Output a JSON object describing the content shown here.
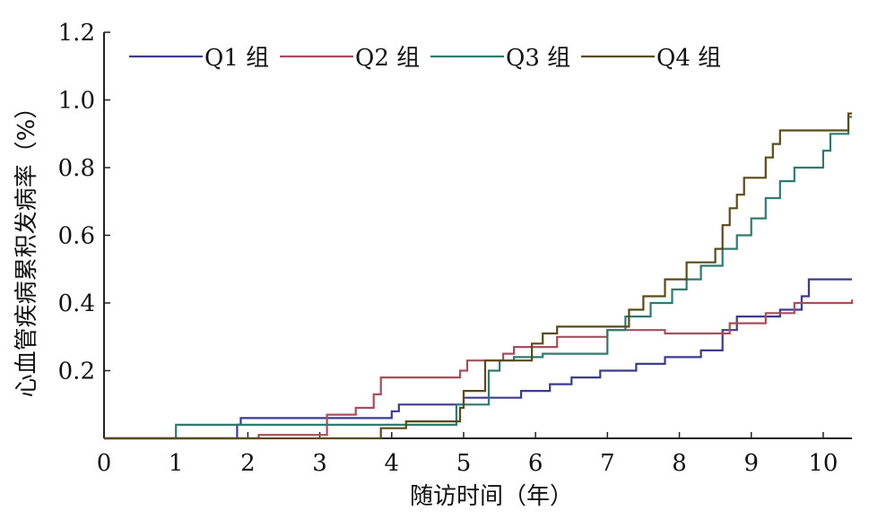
{
  "chart_data": {
    "type": "line",
    "step": true,
    "xlabel": "随访时间（年）",
    "ylabel": "心血管疾病累积发病率（%）",
    "xlim": [
      0,
      10.4
    ],
    "ylim": [
      0,
      1.2
    ],
    "x_ticks": [
      0,
      1,
      2,
      3,
      4,
      5,
      6,
      7,
      8,
      9,
      10
    ],
    "x_tick_labels": [
      "0",
      "1",
      "2",
      "3",
      "4",
      "5",
      "6",
      "7",
      "8",
      "9",
      "10"
    ],
    "y_ticks": [
      0.2,
      0.4,
      0.6,
      0.8,
      1.0,
      1.2
    ],
    "y_tick_labels": [
      "0.2",
      "0.4",
      "0.6",
      "0.8",
      "1.0",
      "1.2"
    ],
    "grid": false,
    "legend_position": "top-left",
    "series": [
      {
        "name": "Q1 组",
        "color": "#3b3b8f",
        "points": [
          [
            0,
            0
          ],
          [
            1.85,
            0.04
          ],
          [
            1.9,
            0.06
          ],
          [
            4.0,
            0.08
          ],
          [
            4.1,
            0.1
          ],
          [
            5.0,
            0.12
          ],
          [
            5.8,
            0.14
          ],
          [
            6.2,
            0.16
          ],
          [
            6.5,
            0.18
          ],
          [
            6.9,
            0.2
          ],
          [
            7.4,
            0.22
          ],
          [
            7.8,
            0.24
          ],
          [
            8.3,
            0.26
          ],
          [
            8.6,
            0.32
          ],
          [
            8.8,
            0.36
          ],
          [
            9.4,
            0.38
          ],
          [
            9.7,
            0.42
          ],
          [
            9.8,
            0.47
          ],
          [
            10.4,
            0.47
          ]
        ]
      },
      {
        "name": "Q2 组",
        "color": "#a84d5c",
        "points": [
          [
            0,
            0
          ],
          [
            2.15,
            0.01
          ],
          [
            3.1,
            0.07
          ],
          [
            3.5,
            0.09
          ],
          [
            3.75,
            0.13
          ],
          [
            3.85,
            0.18
          ],
          [
            4.95,
            0.2
          ],
          [
            5.05,
            0.23
          ],
          [
            5.55,
            0.25
          ],
          [
            5.7,
            0.27
          ],
          [
            6.3,
            0.3
          ],
          [
            7.0,
            0.32
          ],
          [
            7.8,
            0.31
          ],
          [
            8.7,
            0.34
          ],
          [
            9.2,
            0.37
          ],
          [
            9.6,
            0.4
          ],
          [
            10.4,
            0.41
          ]
        ]
      },
      {
        "name": "Q3 组",
        "color": "#2f7a6f",
        "points": [
          [
            0,
            0
          ],
          [
            1.0,
            0.04
          ],
          [
            4.9,
            0.1
          ],
          [
            5.35,
            0.2
          ],
          [
            5.5,
            0.23
          ],
          [
            5.7,
            0.24
          ],
          [
            6.1,
            0.25
          ],
          [
            7.0,
            0.32
          ],
          [
            7.25,
            0.36
          ],
          [
            7.6,
            0.4
          ],
          [
            7.9,
            0.44
          ],
          [
            8.1,
            0.47
          ],
          [
            8.3,
            0.51
          ],
          [
            8.6,
            0.56
          ],
          [
            8.8,
            0.6
          ],
          [
            9.0,
            0.65
          ],
          [
            9.2,
            0.71
          ],
          [
            9.4,
            0.76
          ],
          [
            9.6,
            0.8
          ],
          [
            10.0,
            0.85
          ],
          [
            10.1,
            0.9
          ],
          [
            10.35,
            0.95
          ],
          [
            10.4,
            0.95
          ]
        ]
      },
      {
        "name": "Q4 组",
        "color": "#5a4a1a",
        "points": [
          [
            0,
            0
          ],
          [
            3.85,
            0.03
          ],
          [
            4.2,
            0.05
          ],
          [
            4.95,
            0.09
          ],
          [
            5.0,
            0.14
          ],
          [
            5.3,
            0.23
          ],
          [
            5.95,
            0.28
          ],
          [
            6.1,
            0.31
          ],
          [
            6.3,
            0.33
          ],
          [
            7.3,
            0.38
          ],
          [
            7.5,
            0.42
          ],
          [
            7.8,
            0.47
          ],
          [
            8.1,
            0.52
          ],
          [
            8.5,
            0.56
          ],
          [
            8.6,
            0.63
          ],
          [
            8.7,
            0.68
          ],
          [
            8.8,
            0.72
          ],
          [
            8.9,
            0.77
          ],
          [
            9.2,
            0.83
          ],
          [
            9.3,
            0.87
          ],
          [
            9.4,
            0.91
          ],
          [
            10.35,
            0.96
          ],
          [
            10.4,
            0.96
          ]
        ]
      }
    ]
  }
}
